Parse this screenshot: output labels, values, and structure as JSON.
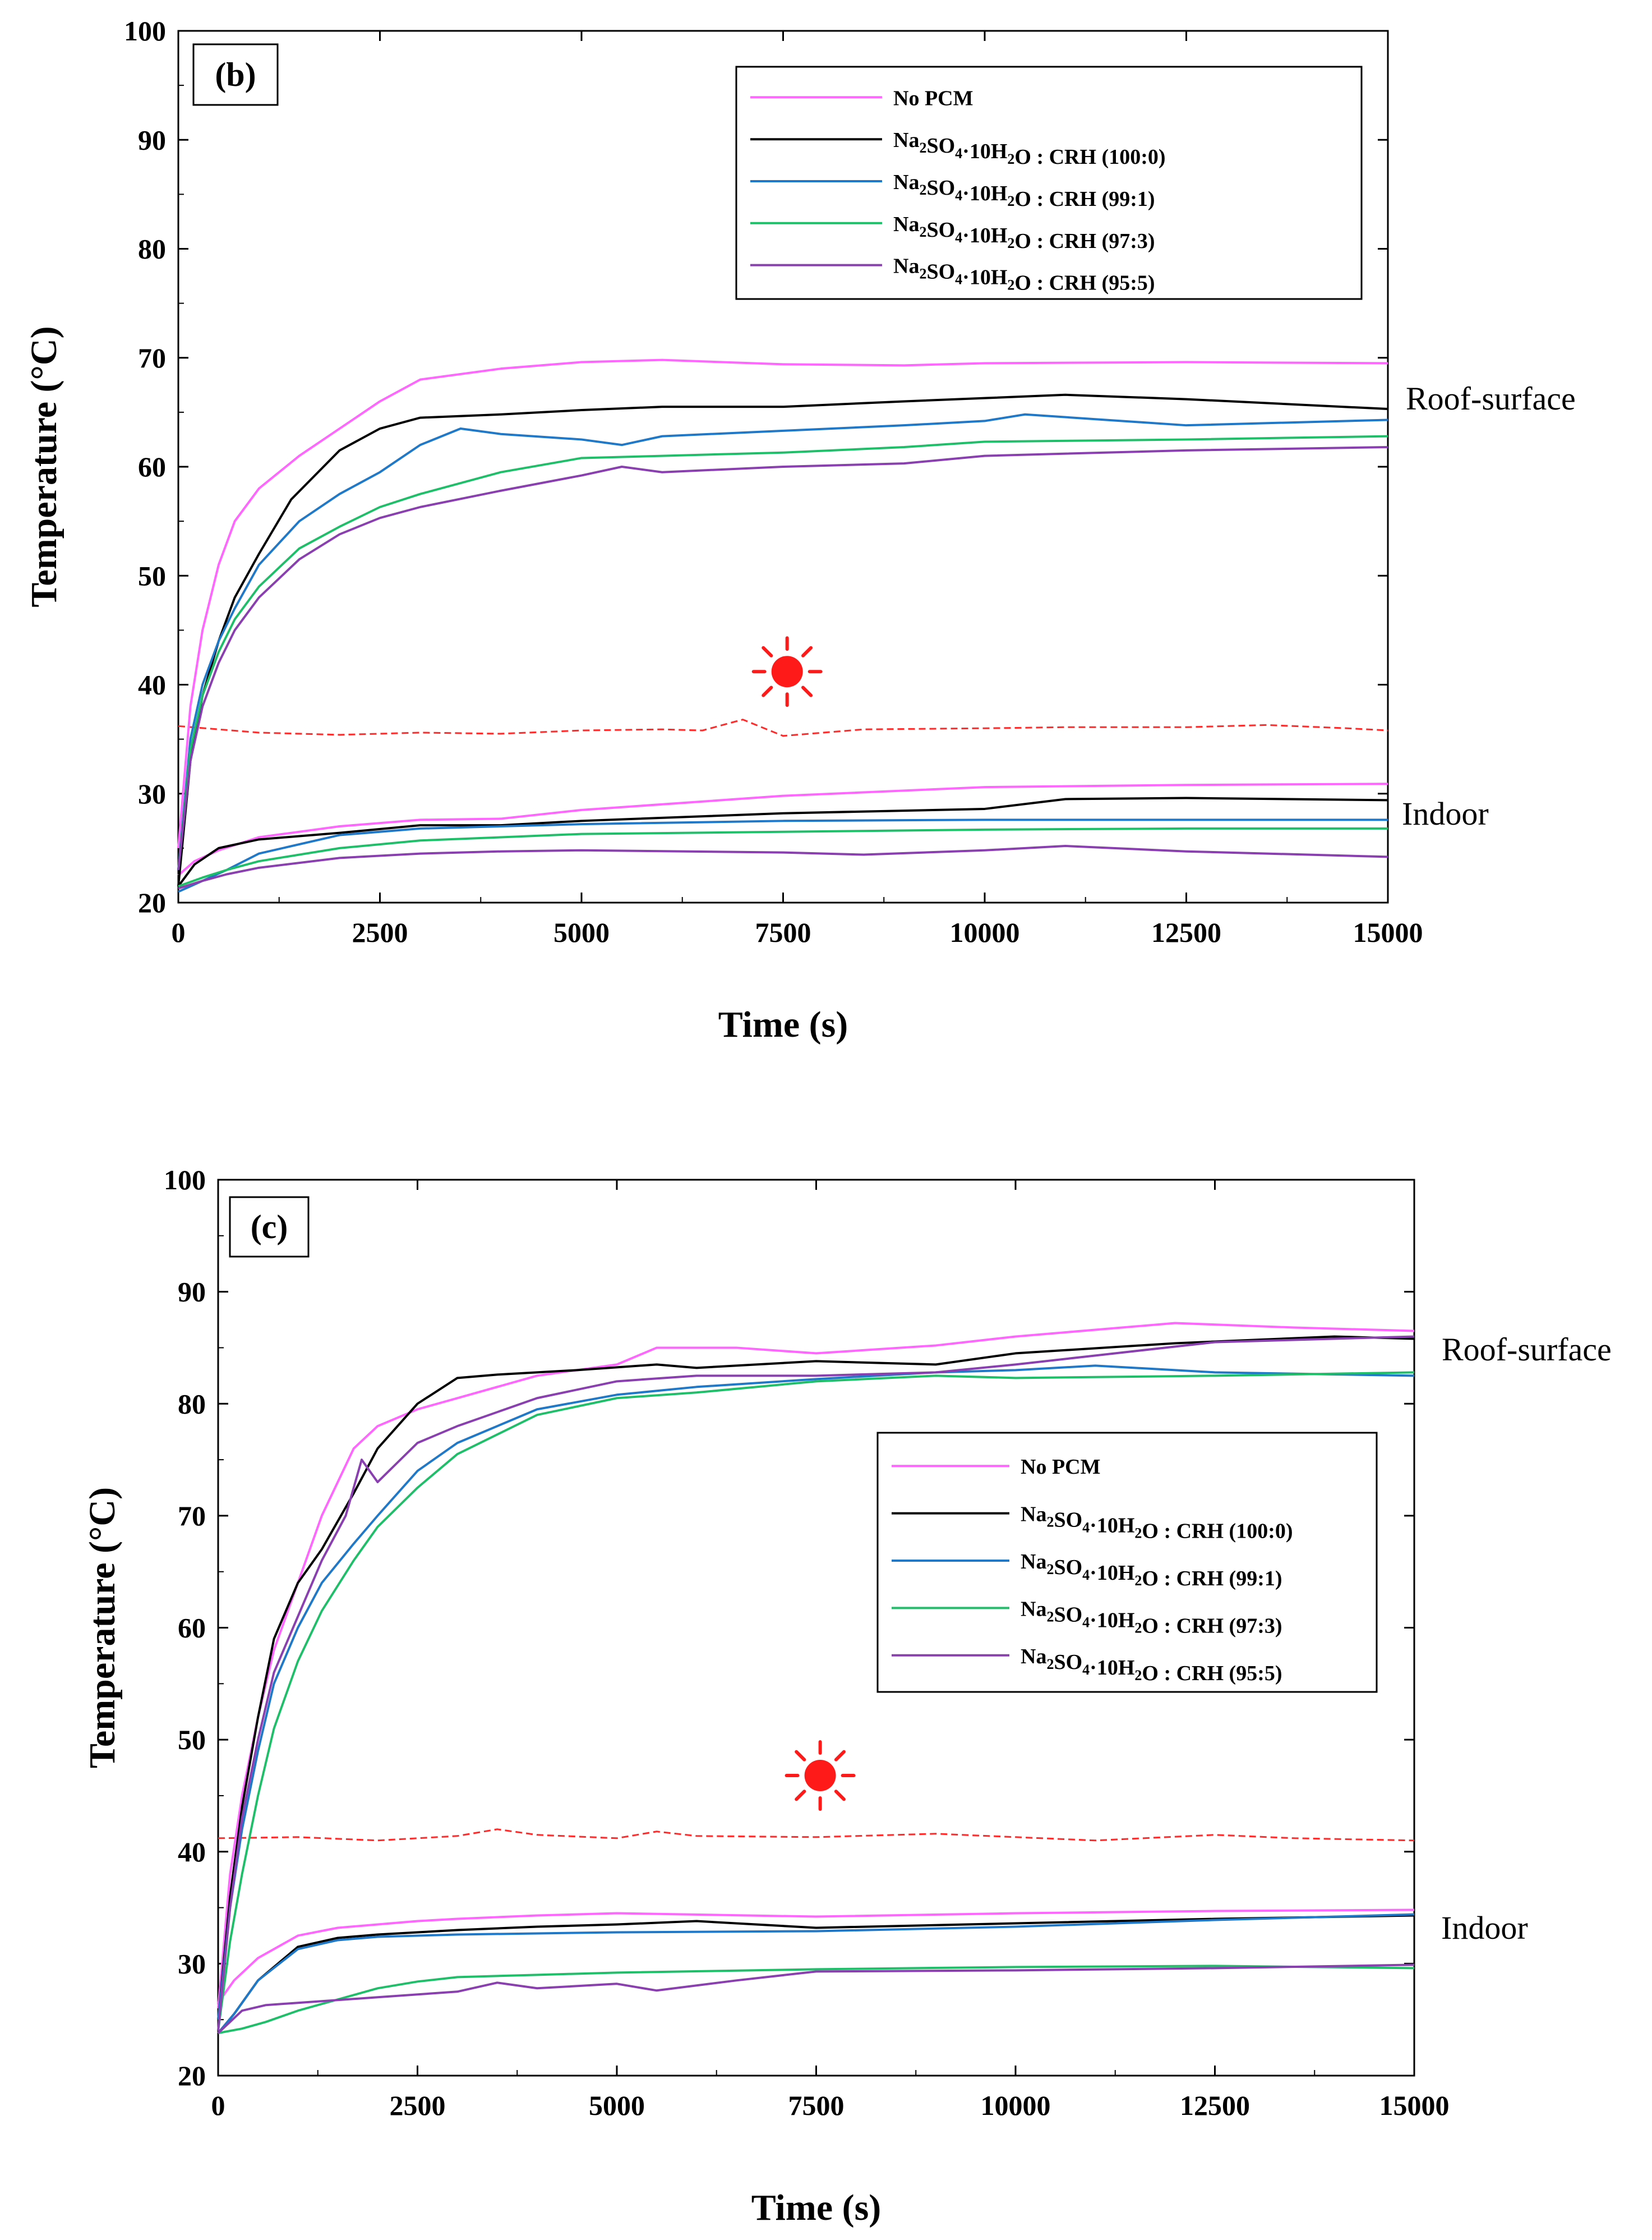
{
  "chart_data": [
    {
      "type": "line",
      "panel_label": "(b)",
      "xlabel": "Time (s)",
      "ylabel": "Temperature (°C)",
      "xlim": [
        0,
        15000
      ],
      "ylim": [
        20,
        100
      ],
      "xticks": [
        "0",
        "2500",
        "5000",
        "7500",
        "10000",
        "12500",
        "15000"
      ],
      "yticks": [
        "20",
        "30",
        "40",
        "50",
        "60",
        "70",
        "80",
        "90",
        "100"
      ],
      "legend_position": "top-right",
      "annotations": {
        "roof": "Roof-surface",
        "indoor": "Indoor"
      },
      "sun_marker": {
        "x": 7550,
        "y": 41.2
      },
      "ambient_line": {
        "color": "#ff2a2a",
        "x": [
          0,
          1000,
          2000,
          3000,
          4000,
          5000,
          6000,
          6500,
          7000,
          7500,
          8500,
          10000,
          11000,
          12500,
          13500,
          14500,
          15000
        ],
        "y": [
          36.2,
          35.6,
          35.4,
          35.6,
          35.5,
          35.8,
          35.9,
          35.8,
          36.8,
          35.3,
          35.9,
          36.0,
          36.1,
          36.1,
          36.3,
          36.0,
          35.8
        ]
      },
      "series": [
        {
          "name": "No PCM",
          "color": "#ff66ff",
          "roof": {
            "x": [
              0,
              150,
              300,
              500,
              700,
              1000,
              1500,
              2000,
              2500,
              3000,
              4000,
              5000,
              6000,
              7500,
              9000,
              10000,
              12500,
              15000
            ],
            "y": [
              25,
              38,
              45,
              51,
              55,
              58,
              61,
              63.5,
              66,
              68,
              69,
              69.6,
              69.8,
              69.4,
              69.3,
              69.5,
              69.6,
              69.5
            ]
          },
          "indoor": {
            "x": [
              0,
              200,
              500,
              1000,
              2000,
              3000,
              4000,
              5000,
              7500,
              10000,
              12500,
              15000
            ],
            "y": [
              22.5,
              23.8,
              24.8,
              26,
              27,
              27.6,
              27.7,
              28.5,
              29.8,
              30.6,
              30.8,
              30.9
            ]
          }
        },
        {
          "name": "Na₂SO₄·10H₂O : CRH (100:0)",
          "color": "#000000",
          "roof": {
            "x": [
              0,
              150,
              300,
              500,
              700,
              1000,
              1400,
              2000,
              2500,
              3000,
              4000,
              5000,
              6000,
              7500,
              9000,
              10000,
              11000,
              12500,
              15000
            ],
            "y": [
              21.5,
              33,
              39,
              44,
              48,
              52,
              57,
              61.5,
              63.5,
              64.5,
              64.8,
              65.2,
              65.5,
              65.5,
              66,
              66.3,
              66.6,
              66.2,
              65.3
            ]
          },
          "indoor": {
            "x": [
              0,
              200,
              500,
              1000,
              2000,
              3000,
              4000,
              5000,
              7500,
              10000,
              11000,
              12500,
              15000
            ],
            "y": [
              21.5,
              23.5,
              25,
              25.8,
              26.4,
              27.1,
              27.1,
              27.5,
              28.2,
              28.6,
              29.5,
              29.6,
              29.4
            ]
          }
        },
        {
          "name": "Na₂SO₄·10H₂O : CRH (99:1)",
          "color": "#1f78c8",
          "roof": {
            "x": [
              0,
              150,
              300,
              500,
              700,
              1000,
              1500,
              2000,
              2500,
              3000,
              3500,
              4000,
              5000,
              5500,
              6000,
              7500,
              9000,
              10000,
              10500,
              12500,
              15000
            ],
            "y": [
              23,
              35,
              40,
              44,
              47,
              51,
              55,
              57.5,
              59.5,
              62,
              63.5,
              63,
              62.5,
              62,
              62.8,
              63.3,
              63.8,
              64.2,
              64.8,
              63.8,
              64.3
            ]
          },
          "indoor": {
            "x": [
              0,
              300,
              600,
              1000,
              2000,
              3000,
              4000,
              5000,
              7500,
              10000,
              12500,
              15000
            ],
            "y": [
              21,
              22,
              23,
              24.5,
              26.2,
              26.8,
              27,
              27.2,
              27.5,
              27.6,
              27.6,
              27.6
            ]
          }
        },
        {
          "name": "Na₂SO₄·10H₂O : CRH (97:3)",
          "color": "#1fbf6a",
          "roof": {
            "x": [
              0,
              150,
              300,
              500,
              700,
              1000,
              1500,
              2000,
              2500,
              3000,
              4000,
              5000,
              6000,
              7500,
              9000,
              10000,
              12500,
              15000
            ],
            "y": [
              23,
              34,
              39,
              43,
              46,
              49,
              52.5,
              54.5,
              56.3,
              57.5,
              59.5,
              60.8,
              61,
              61.3,
              61.8,
              62.3,
              62.5,
              62.8
            ]
          },
          "indoor": {
            "x": [
              0,
              300,
              600,
              1000,
              2000,
              3000,
              4000,
              5000,
              7500,
              10000,
              12500,
              15000
            ],
            "y": [
              21.5,
              22.3,
              23,
              23.8,
              25,
              25.7,
              26,
              26.3,
              26.5,
              26.7,
              26.8,
              26.8
            ]
          }
        },
        {
          "name": "Na₂SO₄·10H₂O : CRH (95:5)",
          "color": "#8a3fb0",
          "roof": {
            "x": [
              0,
              150,
              300,
              500,
              700,
              1000,
              1500,
              2000,
              2500,
              3000,
              4000,
              5000,
              5500,
              6000,
              7500,
              9000,
              10000,
              12500,
              15000
            ],
            "y": [
              23,
              33,
              38,
              42,
              45,
              48,
              51.5,
              53.8,
              55.3,
              56.3,
              57.8,
              59.2,
              60,
              59.5,
              60,
              60.3,
              61,
              61.5,
              61.8
            ]
          },
          "indoor": {
            "x": [
              0,
              300,
              600,
              1000,
              2000,
              3000,
              4000,
              5000,
              7500,
              8500,
              10000,
              11000,
              12500,
              15000
            ],
            "y": [
              21.3,
              22,
              22.6,
              23.2,
              24.1,
              24.5,
              24.7,
              24.8,
              24.6,
              24.4,
              24.8,
              25.2,
              24.7,
              24.2
            ]
          }
        }
      ]
    },
    {
      "type": "line",
      "panel_label": "(c)",
      "xlabel": "Time (s)",
      "ylabel": "Temperature (°C)",
      "xlim": [
        0,
        15000
      ],
      "ylim": [
        20,
        100
      ],
      "xticks": [
        "0",
        "2500",
        "5000",
        "7500",
        "10000",
        "12500",
        "15000"
      ],
      "yticks": [
        "20",
        "30",
        "40",
        "50",
        "60",
        "70",
        "80",
        "90",
        "100"
      ],
      "legend_position": "center-right",
      "annotations": {
        "roof": "Roof-surface",
        "indoor": "Indoor"
      },
      "sun_marker": {
        "x": 7550,
        "y": 46.8
      },
      "ambient_line": {
        "color": "#ff2a2a",
        "x": [
          0,
          1000,
          2000,
          3000,
          3500,
          4000,
          5000,
          5500,
          6000,
          7500,
          9000,
          10000,
          11000,
          12500,
          13500,
          15000
        ],
        "y": [
          41.2,
          41.3,
          41.0,
          41.4,
          42.0,
          41.5,
          41.2,
          41.8,
          41.4,
          41.3,
          41.6,
          41.3,
          41.0,
          41.5,
          41.2,
          41.0
        ]
      },
      "series": [
        {
          "name": "No PCM",
          "color": "#ff66ff",
          "roof": {
            "x": [
              0,
              150,
              300,
              500,
              700,
              1000,
              1300,
              1700,
              2000,
              2500,
              3000,
              4000,
              5000,
              5500,
              6500,
              7500,
              9000,
              10000,
              12000,
              13500,
              15000
            ],
            "y": [
              26,
              38,
              45,
              52,
              58,
              64,
              70,
              76,
              78,
              79.5,
              80.5,
              82.5,
              83.5,
              85,
              85,
              84.5,
              85.2,
              86,
              87.2,
              86.8,
              86.5
            ]
          },
          "indoor": {
            "x": [
              0,
              200,
              500,
              1000,
              1500,
              2000,
              2500,
              3000,
              4000,
              5000,
              7500,
              10000,
              12500,
              15000
            ],
            "y": [
              26.5,
              28.5,
              30.5,
              32.5,
              33.2,
              33.5,
              33.8,
              34,
              34.3,
              34.5,
              34.2,
              34.5,
              34.7,
              34.8
            ]
          }
        },
        {
          "name": "Na₂SO₄·10H₂O : CRH (100:0)",
          "color": "#000000",
          "roof": {
            "x": [
              0,
              150,
              300,
              500,
              700,
              1000,
              1300,
              1700,
              2000,
              2500,
              3000,
              3500,
              4500,
              5500,
              6000,
              7500,
              9000,
              10000,
              12000,
              14000,
              15000
            ],
            "y": [
              25,
              36,
              44,
              52,
              59,
              64,
              67,
              72,
              76,
              80,
              82.3,
              82.6,
              83,
              83.5,
              83.2,
              83.8,
              83.5,
              84.5,
              85.4,
              86,
              85.8
            ]
          },
          "indoor": {
            "x": [
              0,
              200,
              500,
              1000,
              1500,
              2000,
              2500,
              3000,
              4000,
              5000,
              6000,
              7500,
              10000,
              12500,
              15000
            ],
            "y": [
              23.8,
              25.5,
              28.5,
              31.5,
              32.3,
              32.6,
              32.8,
              33,
              33.3,
              33.5,
              33.8,
              33.2,
              33.6,
              34,
              34.3
            ]
          }
        },
        {
          "name": "Na₂SO₄·10H₂O : CRH (99:1)",
          "color": "#1f78c8",
          "roof": {
            "x": [
              0,
              150,
              300,
              500,
              700,
              1000,
              1300,
              1700,
              2000,
              2500,
              3000,
              4000,
              5000,
              6000,
              7500,
              9000,
              10000,
              11000,
              12500,
              15000
            ],
            "y": [
              25,
              35,
              42,
              49,
              55,
              60,
              64,
              67.5,
              70,
              74,
              76.5,
              79.5,
              80.8,
              81.5,
              82.2,
              82.8,
              83,
              83.4,
              82.8,
              82.5
            ]
          },
          "indoor": {
            "x": [
              0,
              200,
              500,
              1000,
              1500,
              2000,
              3000,
              4000,
              5000,
              7500,
              10000,
              12500,
              15000
            ],
            "y": [
              23.8,
              25.5,
              28.5,
              31.3,
              32.1,
              32.4,
              32.6,
              32.7,
              32.8,
              32.9,
              33.3,
              33.9,
              34.4
            ]
          }
        },
        {
          "name": "Na₂SO₄·10H₂O : CRH (97:3)",
          "color": "#1fbf6a",
          "roof": {
            "x": [
              0,
              150,
              300,
              500,
              700,
              1000,
              1300,
              1700,
              2000,
              2500,
              3000,
              4000,
              5000,
              6000,
              7500,
              9000,
              10000,
              12500,
              15000
            ],
            "y": [
              24,
              32,
              38,
              45,
              51,
              57,
              61.5,
              66,
              69,
              72.5,
              75.5,
              79,
              80.5,
              81,
              82,
              82.5,
              82.3,
              82.5,
              82.8
            ]
          },
          "indoor": {
            "x": [
              0,
              300,
              600,
              1000,
              1500,
              2000,
              2500,
              3000,
              4000,
              5000,
              7500,
              10000,
              12500,
              15000
            ],
            "y": [
              23.8,
              24.2,
              24.8,
              25.8,
              26.8,
              27.8,
              28.4,
              28.8,
              29,
              29.2,
              29.5,
              29.7,
              29.8,
              29.6
            ]
          }
        },
        {
          "name": "Na₂SO₄·10H₂O : CRH (95:5)",
          "color": "#8a3fb0",
          "roof": {
            "x": [
              0,
              150,
              300,
              500,
              700,
              1000,
              1300,
              1600,
              1800,
              2000,
              2500,
              3000,
              4000,
              5000,
              6000,
              7500,
              9000,
              10000,
              12500,
              15000
            ],
            "y": [
              24,
              35,
              43,
              50,
              56,
              61,
              66,
              70,
              75,
              73,
              76.5,
              78,
              80.5,
              82,
              82.5,
              82.5,
              82.8,
              83.5,
              85.5,
              86
            ]
          },
          "indoor": {
            "x": [
              0,
              300,
              600,
              1000,
              2000,
              3000,
              3500,
              4000,
              5000,
              5500,
              6500,
              7500,
              10000,
              12500,
              15000
            ],
            "y": [
              23.8,
              25.8,
              26.3,
              26.5,
              27,
              27.5,
              28.3,
              27.8,
              28.2,
              27.6,
              28.5,
              29.3,
              29.4,
              29.6,
              29.9
            ]
          }
        }
      ]
    }
  ]
}
